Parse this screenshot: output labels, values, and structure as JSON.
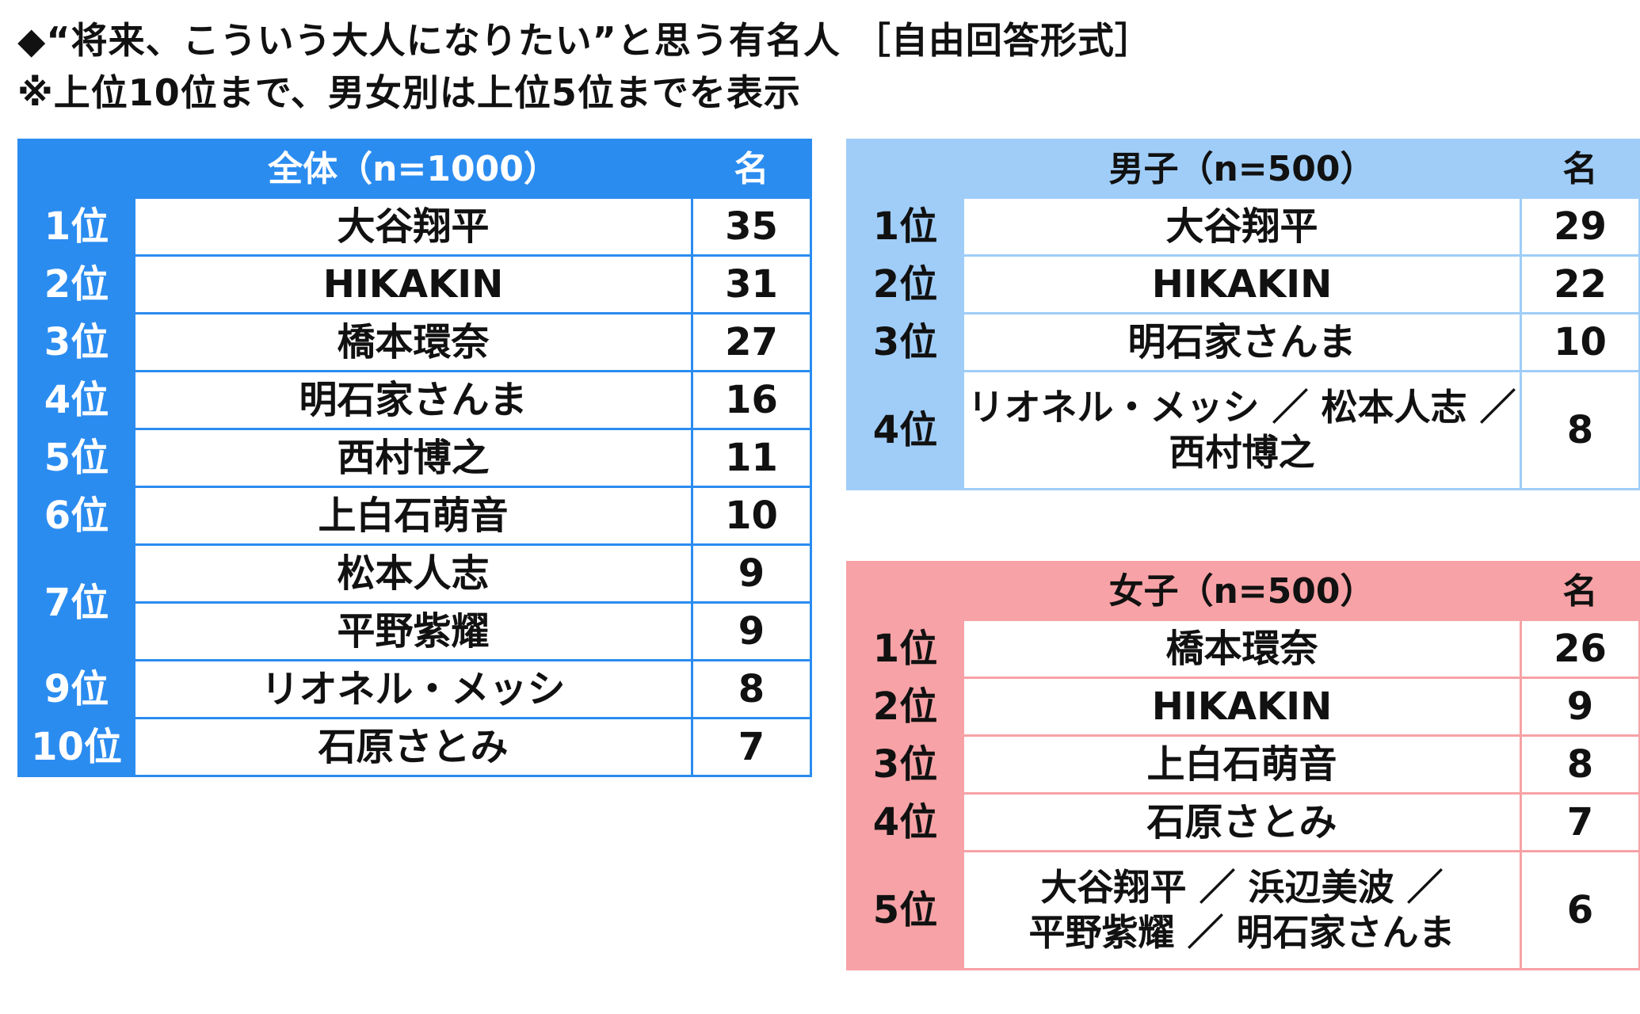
{
  "title": "◆“将来、こういう大人になりたい”と思う有名人 ［自由回答形式］",
  "subtitle": "※上位10位まで、男女別は上位5位までを表示",
  "chart_data": [
    {
      "type": "table",
      "header_label": "全体（n=1000）",
      "unit_label": "名",
      "rows": [
        {
          "rank": "1位",
          "name": "大谷翔平",
          "count": 35
        },
        {
          "rank": "2位",
          "name": "HIKAKIN",
          "count": 31
        },
        {
          "rank": "3位",
          "name": "橋本環奈",
          "count": 27
        },
        {
          "rank": "4位",
          "name": "明石家さんま",
          "count": 16
        },
        {
          "rank": "5位",
          "name": "西村博之",
          "count": 11
        },
        {
          "rank": "6位",
          "name": "上白石萌音",
          "count": 10
        },
        {
          "rank": "7位",
          "name": "松本人志",
          "count": 9
        },
        {
          "rank": "7位",
          "name": "平野紫耀",
          "count": 9
        },
        {
          "rank": "9位",
          "name": "リオネル・メッシ",
          "count": 8
        },
        {
          "rank": "10位",
          "name": "石原さとみ",
          "count": 7
        }
      ]
    },
    {
      "type": "table",
      "header_label": "男子（n=500）",
      "unit_label": "名",
      "rows": [
        {
          "rank": "1位",
          "name": "大谷翔平",
          "count": 29
        },
        {
          "rank": "2位",
          "name": "HIKAKIN",
          "count": 22
        },
        {
          "rank": "3位",
          "name": "明石家さんま",
          "count": 10
        },
        {
          "rank": "4位",
          "name": "リオネル・メッシ ／ 松本人志 ／",
          "name2": "西村博之",
          "count": 8
        }
      ]
    },
    {
      "type": "table",
      "header_label": "女子（n=500）",
      "unit_label": "名",
      "rows": [
        {
          "rank": "1位",
          "name": "橋本環奈",
          "count": 26
        },
        {
          "rank": "2位",
          "name": "HIKAKIN",
          "count": 9
        },
        {
          "rank": "3位",
          "name": "上白石萌音",
          "count": 8
        },
        {
          "rank": "4位",
          "name": "石原さとみ",
          "count": 7
        },
        {
          "rank": "5位",
          "name": "大谷翔平 ／ 浜辺美波 ／",
          "name2": "平野紫耀 ／ 明石家さんま",
          "count": 6
        }
      ]
    }
  ]
}
